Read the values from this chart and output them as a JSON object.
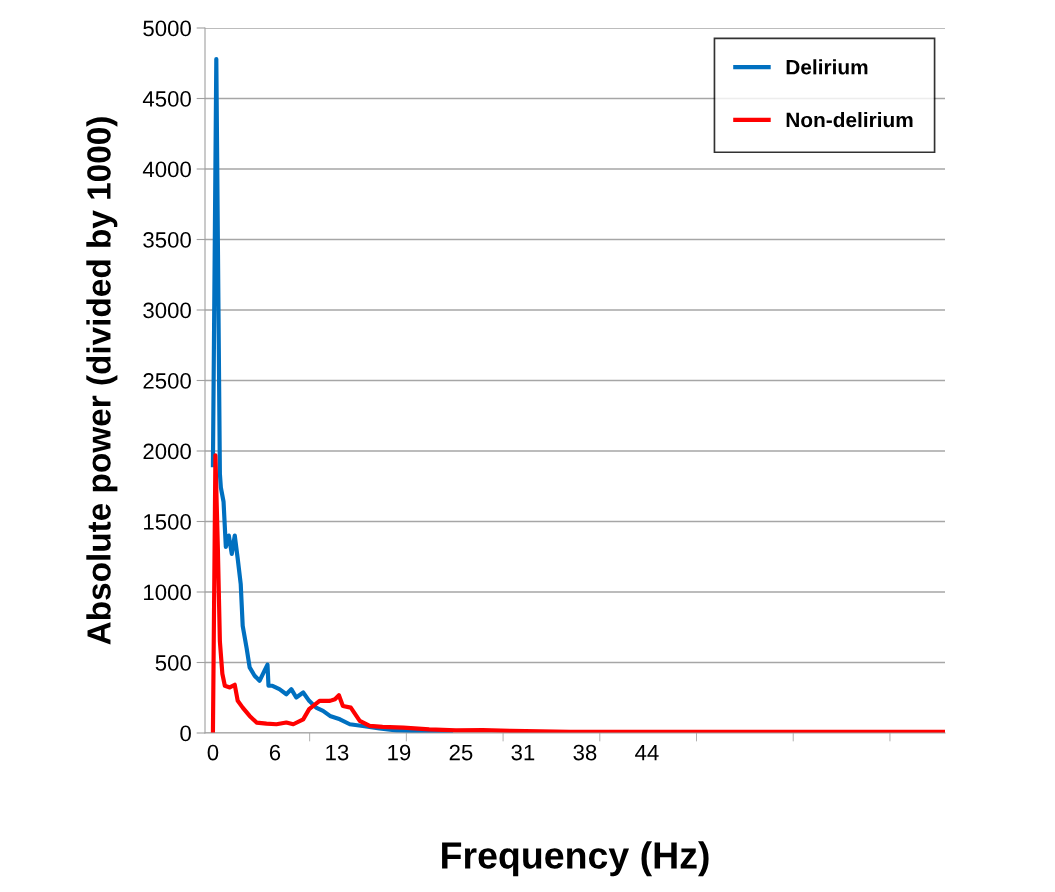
{
  "chart_data": {
    "type": "line",
    "xlabel": "Frequency (Hz)",
    "ylabel": "Absolute power (divided by 1000)",
    "xlim": [
      -0.8,
      73.8
    ],
    "ylim": [
      0,
      5000
    ],
    "xticks": [
      0,
      {
        "value": 6.25,
        "label": "6"
      },
      {
        "value": 12.5,
        "label": "13"
      },
      {
        "value": 18.75,
        "label": "19"
      },
      25,
      {
        "value": 31.25,
        "label": "31"
      },
      {
        "value": 37.5,
        "label": "38"
      },
      {
        "value": 43.75,
        "label": "44"
      },
      {
        "value": 9.75,
        "label": null
      },
      {
        "value": 19.5,
        "label": null
      },
      {
        "value": 29.25,
        "label": null
      },
      {
        "value": 39,
        "label": null
      },
      {
        "value": 48.75,
        "label": null
      },
      {
        "value": 58.5,
        "label": null
      },
      {
        "value": 68.25,
        "label": null
      }
    ],
    "yticks": [
      0,
      500,
      1000,
      1500,
      2000,
      2500,
      3000,
      3500,
      4000,
      4500,
      5000
    ],
    "grid": "y",
    "legend": "top right",
    "line_style": "solid",
    "marker": "none",
    "series": [
      {
        "name": "Delirium",
        "color": "#0070c0",
        "x": [
          0,
          0.34,
          0.7,
          0.8,
          1.07,
          1.3,
          1.6,
          1.9,
          2.2,
          2.5,
          2.8,
          3.0,
          3.4,
          3.7,
          4.2,
          4.7,
          5.2,
          5.5,
          5.6,
          6.0,
          6.7,
          7.4,
          7.9,
          8.4,
          9.1,
          9.7,
          10.4,
          11.1,
          11.8,
          12.8,
          13.8,
          15.1,
          16.8,
          18.5,
          21.8,
          24
        ],
        "values": [
          1900,
          4780,
          1840,
          1740,
          1640,
          1320,
          1400,
          1270,
          1400,
          1235,
          1057,
          760,
          600,
          465,
          406,
          370,
          442,
          485,
          335,
          335,
          311,
          275,
          311,
          252,
          287,
          228,
          180,
          157,
          121,
          97,
          62,
          50,
          33,
          19,
          10,
          12
        ]
      },
      {
        "name": "Non-delirium",
        "color": "#ff0000",
        "x": [
          0,
          0.25,
          0.5,
          0.7,
          0.95,
          1.2,
          1.7,
          2.2,
          2.5,
          3.0,
          3.7,
          4.4,
          5.4,
          6.4,
          7.4,
          8.1,
          9.1,
          9.7,
          10.75,
          11.8,
          12.3,
          12.7,
          13.1,
          13.9,
          14.8,
          15.8,
          17.1,
          19.2,
          21.8,
          24.5,
          27.2,
          30,
          33,
          36,
          45,
          55,
          65,
          73.8
        ],
        "values": [
          0,
          1970,
          1300,
          650,
          420,
          335,
          323,
          342,
          228,
          180,
          121,
          74,
          67,
          62,
          74,
          62,
          97,
          169,
          228,
          228,
          240,
          268,
          192,
          180,
          86,
          50,
          43,
          38,
          26,
          19,
          20,
          15,
          12,
          9,
          8,
          8,
          8,
          8
        ]
      }
    ]
  }
}
